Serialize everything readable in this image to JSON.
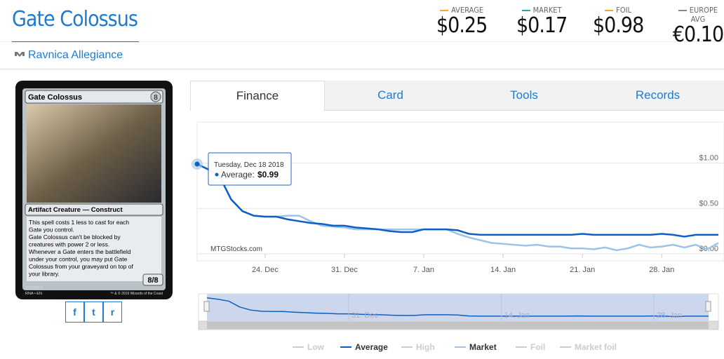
{
  "header": {
    "title": "Gate Colossus",
    "set": "Ravnica Allegiance",
    "prices": [
      {
        "label": "AVERAGE",
        "value": "$0.25",
        "color": "#f0a830"
      },
      {
        "label": "MARKET",
        "value": "$0.17",
        "color": "#30a0b0"
      },
      {
        "label": "FOIL",
        "value": "$0.98",
        "color": "#f0a830"
      },
      {
        "label": "EUROPE AVG",
        "value": "€0.10",
        "color": "#888888"
      }
    ]
  },
  "card": {
    "name": "Gate Colossus",
    "cost": "8",
    "type_line": "Artifact Creature — Construct",
    "rules": [
      "This spell costs 1 less to cast for each",
      "Gate you control.",
      "Gate Colossus can't be blocked by",
      "creatures with power 2 or less.",
      "Whenever a Gate enters the battlefield",
      "under your control, you may put Gate",
      "Colossus from your graveyard on top of",
      "your library."
    ],
    "pt": "8/8",
    "collector": "232/259 U",
    "lang": "RNA • EN",
    "copyright": "™ & © 2019 Wizards of the Coast"
  },
  "tabs": [
    "Finance",
    "Card",
    "Tools",
    "Records"
  ],
  "chart_data": {
    "type": "line",
    "watermark": "MTGStocks.com",
    "x": [
      "18. Dec",
      "19. Dec",
      "20. Dec",
      "21. Dec",
      "22. Dec",
      "23. Dec",
      "24. Dec",
      "25. Dec",
      "26. Dec",
      "27. Dec",
      "28. Dec",
      "29. Dec",
      "30. Dec",
      "31. Dec",
      "1. Jan",
      "2. Jan",
      "3. Jan",
      "4. Jan",
      "5. Jan",
      "6. Jan",
      "7. Jan",
      "8. Jan",
      "9. Jan",
      "10. Jan",
      "11. Jan",
      "12. Jan",
      "13. Jan",
      "14. Jan",
      "15. Jan",
      "16. Jan",
      "17. Jan",
      "18. Jan",
      "19. Jan",
      "20. Jan",
      "21. Jan",
      "22. Jan",
      "23. Jan",
      "24. Jan",
      "25. Jan",
      "26. Jan",
      "27. Jan",
      "28. Jan",
      "29. Jan",
      "30. Jan",
      "31. Jan",
      "1. Feb",
      "2. Feb"
    ],
    "xticks": [
      "24. Dec",
      "31. Dec",
      "7. Jan",
      "14. Jan",
      "21. Jan",
      "28. Jan"
    ],
    "ylim": [
      0,
      1.5
    ],
    "yticks": [
      {
        "value": 0,
        "label": "$0.00"
      },
      {
        "value": 0.5,
        "label": "$0.50"
      },
      {
        "value": 1,
        "label": "$1.00"
      }
    ],
    "series": [
      {
        "name": "Average",
        "color": "#0d5fc4",
        "values": [
          0.99,
          0.93,
          0.85,
          0.6,
          0.47,
          0.42,
          0.41,
          0.41,
          0.38,
          0.36,
          0.34,
          0.33,
          0.31,
          0.31,
          0.29,
          0.28,
          0.27,
          0.25,
          0.24,
          0.24,
          0.27,
          0.27,
          0.27,
          0.26,
          0.22,
          0.21,
          0.21,
          0.21,
          0.21,
          0.21,
          0.21,
          0.21,
          0.21,
          0.21,
          0.22,
          0.21,
          0.21,
          0.21,
          0.21,
          0.21,
          0.21,
          0.22,
          0.21,
          0.19,
          0.21,
          0.21,
          0.21
        ]
      },
      {
        "name": "Market",
        "color": "#9ec3e6",
        "values": [
          0.99,
          0.93,
          0.85,
          0.6,
          0.47,
          0.42,
          0.41,
          0.41,
          0.42,
          0.42,
          0.36,
          0.31,
          0.3,
          0.29,
          0.27,
          0.27,
          0.27,
          0.27,
          0.27,
          0.27,
          0.27,
          0.27,
          0.27,
          0.22,
          0.18,
          0.15,
          0.12,
          0.11,
          0.1,
          0.09,
          0.1,
          0.08,
          0.08,
          0.06,
          0.06,
          0.05,
          0.07,
          0.04,
          0.06,
          0.1,
          0.07,
          0.08,
          0.1,
          0.07,
          0.1,
          0.05,
          0.12
        ]
      }
    ],
    "hidden_series": [
      "Low",
      "High",
      "Foil",
      "Market foil"
    ],
    "tooltip": {
      "date": "Tuesday, Dec 18 2018",
      "series": "Average:",
      "value_label": "$0.99"
    }
  }
}
